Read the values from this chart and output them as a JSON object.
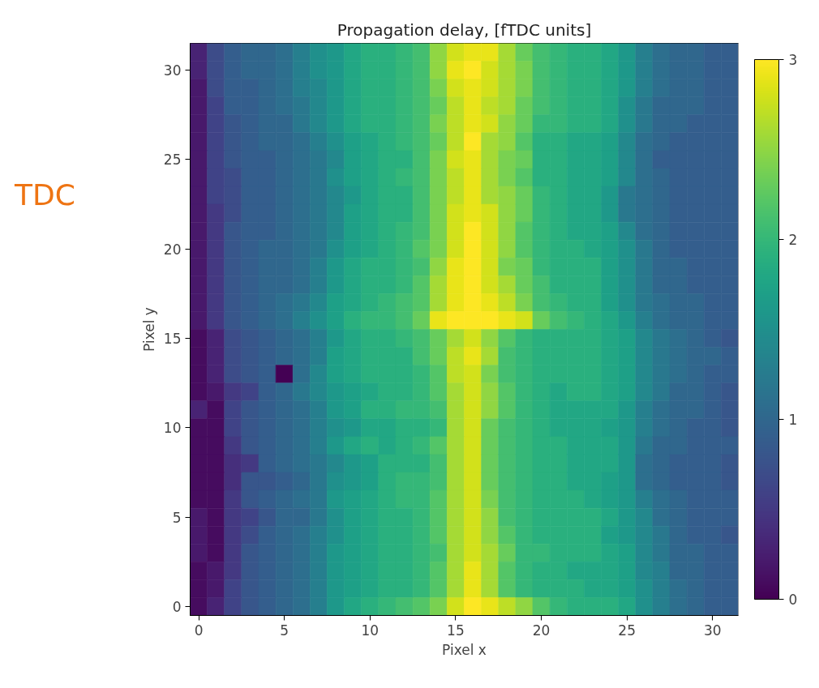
{
  "chart_data": {
    "type": "heatmap",
    "title": "Propagation delay, [fTDC units]",
    "xlabel": "Pixel x",
    "ylabel": "Pixel y",
    "categories": [
      "0",
      null,
      null,
      null,
      null,
      "5",
      null,
      null,
      null,
      null,
      "10",
      null,
      null,
      null,
      null,
      "15",
      null,
      null,
      null,
      null,
      "20",
      null,
      null,
      null,
      null,
      "25",
      null,
      null,
      null,
      null,
      "30",
      null
    ],
    "y_categories": [
      null,
      "30",
      null,
      null,
      null,
      null,
      "25",
      null,
      null,
      null,
      null,
      "20",
      null,
      null,
      null,
      null,
      "15",
      null,
      null,
      null,
      null,
      "10",
      null,
      null,
      null,
      null,
      "5",
      null,
      null,
      null,
      null,
      "0"
    ],
    "clim": [
      0,
      3
    ],
    "cticks": [
      0,
      1,
      2,
      3
    ],
    "annotations": [
      "TDC"
    ],
    "cells": [
      [
        0.3,
        0.7,
        0.9,
        1.0,
        1.0,
        1.1,
        1.3,
        1.5,
        1.6,
        1.8,
        1.9,
        1.9,
        2.0,
        2.1,
        2.5,
        2.8,
        2.9,
        2.9,
        2.6,
        2.3,
        2.1,
        2.0,
        1.9,
        1.9,
        1.8,
        1.6,
        1.3,
        1.1,
        1.0,
        1.0,
        0.9,
        0.9
      ],
      [
        0.3,
        0.7,
        0.9,
        1.0,
        1.0,
        1.1,
        1.3,
        1.5,
        1.6,
        1.8,
        1.9,
        1.9,
        2.0,
        2.1,
        2.5,
        2.9,
        3.0,
        2.8,
        2.6,
        2.4,
        2.1,
        2.0,
        1.9,
        1.9,
        1.8,
        1.6,
        1.3,
        1.1,
        1.0,
        1.0,
        0.9,
        0.9
      ],
      [
        0.2,
        0.7,
        0.9,
        0.9,
        1.0,
        1.1,
        1.3,
        1.4,
        1.6,
        1.8,
        1.9,
        1.9,
        2.0,
        2.1,
        2.4,
        2.8,
        2.9,
        2.8,
        2.6,
        2.4,
        2.1,
        2.0,
        1.9,
        1.9,
        1.8,
        1.6,
        1.3,
        1.1,
        1.0,
        1.0,
        0.9,
        0.9
      ],
      [
        0.2,
        0.6,
        0.9,
        0.9,
        1.0,
        1.1,
        1.2,
        1.4,
        1.6,
        1.8,
        1.9,
        1.9,
        2.0,
        2.1,
        2.3,
        2.7,
        2.9,
        2.7,
        2.6,
        2.3,
        2.1,
        2.0,
        1.9,
        1.9,
        1.8,
        1.5,
        1.2,
        1.0,
        1.0,
        1.0,
        0.9,
        0.9
      ],
      [
        0.2,
        0.6,
        0.8,
        0.9,
        1.0,
        1.0,
        1.2,
        1.4,
        1.6,
        1.8,
        1.9,
        1.9,
        2.0,
        2.1,
        2.4,
        2.7,
        2.9,
        2.8,
        2.5,
        2.3,
        2.0,
        2.0,
        1.9,
        1.9,
        1.8,
        1.5,
        1.2,
        1.0,
        1.0,
        0.9,
        0.9,
        0.9
      ],
      [
        0.2,
        0.6,
        0.8,
        0.9,
        1.0,
        1.0,
        1.1,
        1.3,
        1.5,
        1.7,
        1.8,
        1.9,
        2.0,
        2.1,
        2.3,
        2.7,
        3.0,
        2.6,
        2.5,
        2.2,
        1.9,
        1.9,
        1.8,
        1.8,
        1.7,
        1.4,
        1.1,
        1.0,
        0.9,
        0.9,
        0.9,
        0.9
      ],
      [
        0.2,
        0.6,
        0.8,
        0.9,
        0.9,
        1.0,
        1.1,
        1.2,
        1.4,
        1.7,
        1.8,
        1.9,
        1.9,
        2.1,
        2.4,
        2.8,
        2.9,
        2.6,
        2.4,
        2.3,
        1.9,
        1.9,
        1.8,
        1.8,
        1.7,
        1.4,
        1.1,
        0.9,
        0.9,
        0.9,
        0.9,
        0.9
      ],
      [
        0.2,
        0.6,
        0.7,
        0.9,
        0.9,
        1.0,
        1.1,
        1.2,
        1.5,
        1.7,
        1.8,
        1.9,
        2.0,
        2.1,
        2.4,
        2.7,
        2.9,
        2.6,
        2.4,
        2.2,
        1.9,
        1.9,
        1.8,
        1.8,
        1.7,
        1.4,
        1.1,
        1.0,
        0.9,
        0.9,
        0.9,
        0.9
      ],
      [
        0.2,
        0.6,
        0.7,
        0.9,
        0.9,
        1.0,
        1.1,
        1.2,
        1.4,
        1.6,
        1.8,
        1.9,
        1.9,
        2.1,
        2.4,
        2.7,
        2.9,
        2.6,
        2.5,
        2.3,
        2.0,
        1.9,
        1.8,
        1.8,
        1.6,
        1.2,
        1.1,
        1.0,
        0.9,
        0.9,
        0.9,
        0.9
      ],
      [
        0.2,
        0.5,
        0.7,
        0.9,
        0.9,
        1.0,
        1.1,
        1.2,
        1.4,
        1.7,
        1.8,
        1.9,
        1.9,
        2.1,
        2.4,
        2.8,
        2.9,
        2.8,
        2.5,
        2.3,
        2.0,
        1.9,
        1.8,
        1.8,
        1.6,
        1.2,
        1.1,
        1.0,
        0.9,
        0.9,
        0.9,
        0.9
      ],
      [
        0.2,
        0.5,
        0.8,
        0.9,
        0.9,
        1.0,
        1.1,
        1.2,
        1.4,
        1.7,
        1.8,
        1.9,
        2.0,
        2.1,
        2.4,
        2.8,
        3.0,
        2.8,
        2.5,
        2.2,
        2.0,
        1.9,
        1.8,
        1.8,
        1.7,
        1.4,
        1.1,
        1.0,
        0.9,
        0.9,
        0.9,
        0.9
      ],
      [
        0.2,
        0.5,
        0.8,
        0.9,
        1.0,
        1.0,
        1.1,
        1.2,
        1.5,
        1.7,
        1.8,
        1.9,
        2.0,
        2.2,
        2.4,
        2.8,
        3.0,
        2.8,
        2.5,
        2.2,
        2.0,
        1.9,
        1.9,
        1.8,
        1.7,
        1.5,
        1.2,
        1.0,
        0.9,
        0.9,
        0.9,
        0.9
      ],
      [
        0.2,
        0.5,
        0.8,
        0.9,
        1.0,
        1.0,
        1.1,
        1.3,
        1.6,
        1.8,
        1.9,
        1.9,
        2.0,
        2.1,
        2.5,
        2.9,
        3.0,
        2.8,
        2.4,
        2.3,
        2.0,
        1.9,
        1.9,
        1.9,
        1.7,
        1.5,
        1.2,
        1.0,
        1.0,
        0.9,
        0.9,
        0.9
      ],
      [
        0.2,
        0.5,
        0.8,
        0.9,
        1.0,
        1.0,
        1.1,
        1.3,
        1.6,
        1.8,
        1.9,
        1.9,
        2.0,
        2.2,
        2.6,
        2.9,
        3.0,
        2.8,
        2.6,
        2.3,
        2.1,
        1.9,
        1.9,
        1.9,
        1.7,
        1.5,
        1.2,
        1.0,
        1.0,
        0.9,
        0.9,
        0.9
      ],
      [
        0.2,
        0.5,
        0.8,
        0.9,
        1.0,
        1.1,
        1.2,
        1.4,
        1.7,
        1.8,
        1.9,
        2.0,
        2.1,
        2.2,
        2.6,
        2.9,
        3.0,
        2.9,
        2.7,
        2.4,
        2.1,
        2.0,
        1.9,
        1.9,
        1.7,
        1.5,
        1.2,
        1.1,
        1.0,
        1.0,
        0.9,
        0.9
      ],
      [
        0.2,
        0.5,
        0.8,
        0.9,
        1.0,
        1.1,
        1.3,
        1.5,
        1.7,
        1.9,
        2.0,
        2.0,
        2.1,
        2.3,
        2.9,
        3.0,
        3.0,
        3.0,
        2.9,
        2.8,
        2.3,
        2.1,
        2.0,
        1.9,
        1.8,
        1.6,
        1.3,
        1.1,
        1.0,
        1.0,
        0.9,
        0.9
      ],
      [
        0.1,
        0.3,
        0.7,
        0.8,
        0.9,
        1.0,
        1.1,
        1.3,
        1.6,
        1.8,
        1.9,
        1.9,
        2.0,
        2.1,
        2.3,
        2.6,
        2.8,
        2.5,
        2.2,
        2.0,
        1.9,
        1.9,
        1.9,
        1.9,
        1.8,
        1.7,
        1.4,
        1.2,
        1.1,
        1.0,
        0.9,
        0.8
      ],
      [
        0.1,
        0.3,
        0.7,
        0.8,
        0.9,
        1.0,
        1.1,
        1.3,
        1.7,
        1.8,
        1.9,
        1.9,
        1.9,
        2.1,
        2.3,
        2.7,
        2.9,
        2.6,
        2.1,
        2.0,
        1.9,
        1.9,
        1.9,
        1.9,
        1.8,
        1.7,
        1.4,
        1.2,
        1.1,
        1.0,
        1.0,
        0.9
      ],
      [
        0.1,
        0.3,
        0.7,
        0.8,
        0.9,
        0.0,
        1.1,
        1.4,
        1.7,
        1.8,
        1.9,
        1.9,
        1.9,
        2.0,
        2.2,
        2.7,
        2.8,
        2.4,
        2.1,
        2.0,
        1.9,
        1.9,
        1.9,
        1.9,
        1.8,
        1.7,
        1.4,
        1.2,
        1.1,
        1.0,
        0.9,
        0.9
      ],
      [
        0.1,
        0.2,
        0.5,
        0.6,
        0.9,
        1.0,
        1.2,
        1.4,
        1.6,
        1.7,
        1.8,
        1.9,
        1.9,
        2.0,
        2.2,
        2.6,
        2.8,
        2.5,
        2.2,
        2.0,
        1.9,
        1.8,
        1.9,
        1.9,
        1.8,
        1.7,
        1.4,
        1.2,
        1.0,
        1.0,
        0.9,
        0.8
      ],
      [
        0.3,
        0.1,
        0.6,
        0.8,
        0.9,
        1.0,
        1.1,
        1.3,
        1.6,
        1.7,
        1.9,
        1.9,
        2.0,
        2.0,
        2.1,
        2.6,
        2.8,
        2.5,
        2.2,
        2.0,
        1.9,
        1.8,
        1.8,
        1.8,
        1.8,
        1.6,
        1.3,
        1.1,
        1.0,
        1.0,
        0.9,
        0.8
      ],
      [
        0.1,
        0.1,
        0.6,
        0.8,
        0.9,
        1.0,
        1.1,
        1.3,
        1.5,
        1.6,
        1.8,
        1.8,
        1.9,
        1.9,
        2.0,
        2.6,
        2.8,
        2.3,
        2.1,
        2.0,
        1.9,
        1.8,
        1.8,
        1.8,
        1.7,
        1.6,
        1.3,
        1.1,
        1.0,
        0.9,
        0.9,
        0.8
      ],
      [
        0.1,
        0.1,
        0.5,
        0.8,
        0.9,
        1.0,
        1.1,
        1.3,
        1.6,
        1.8,
        1.9,
        1.8,
        1.9,
        2.0,
        2.2,
        2.6,
        2.8,
        2.3,
        2.1,
        2.0,
        1.9,
        1.9,
        1.8,
        1.8,
        1.8,
        1.6,
        1.2,
        1.0,
        1.0,
        0.9,
        0.9,
        0.9
      ],
      [
        0.1,
        0.1,
        0.4,
        0.5,
        0.9,
        1.0,
        1.1,
        1.2,
        1.4,
        1.6,
        1.7,
        1.9,
        1.9,
        1.9,
        2.1,
        2.6,
        2.8,
        2.3,
        2.1,
        2.0,
        1.9,
        1.9,
        1.8,
        1.8,
        1.8,
        1.6,
        1.1,
        1.0,
        0.9,
        0.9,
        0.9,
        0.8
      ],
      [
        0.1,
        0.1,
        0.4,
        0.8,
        0.8,
        0.9,
        1.0,
        1.2,
        1.5,
        1.6,
        1.7,
        1.9,
        2.0,
        2.0,
        2.1,
        2.6,
        2.8,
        2.3,
        2.1,
        2.0,
        1.9,
        1.9,
        1.8,
        1.8,
        1.7,
        1.6,
        1.1,
        1.0,
        0.9,
        0.9,
        0.9,
        0.8
      ],
      [
        0.1,
        0.1,
        0.5,
        0.8,
        0.9,
        1.0,
        1.1,
        1.2,
        1.6,
        1.7,
        1.8,
        1.9,
        2.0,
        2.0,
        2.2,
        2.6,
        2.8,
        2.4,
        2.1,
        2.0,
        1.9,
        1.9,
        1.9,
        1.8,
        1.7,
        1.6,
        1.3,
        1.1,
        1.0,
        0.9,
        0.9,
        0.9
      ],
      [
        0.2,
        0.1,
        0.5,
        0.6,
        0.8,
        1.0,
        1.0,
        1.2,
        1.5,
        1.7,
        1.8,
        1.9,
        1.9,
        2.0,
        2.2,
        2.6,
        2.8,
        2.5,
        2.1,
        2.0,
        1.9,
        1.9,
        1.9,
        1.9,
        1.8,
        1.6,
        1.4,
        1.1,
        1.0,
        0.9,
        0.9,
        0.9
      ],
      [
        0.2,
        0.1,
        0.5,
        0.7,
        0.9,
        1.0,
        1.1,
        1.3,
        1.5,
        1.7,
        1.8,
        1.9,
        1.9,
        2.0,
        2.2,
        2.6,
        2.8,
        2.5,
        2.2,
        2.0,
        1.9,
        1.9,
        1.9,
        1.9,
        1.7,
        1.6,
        1.4,
        1.2,
        1.0,
        0.9,
        0.9,
        0.8
      ],
      [
        0.2,
        0.1,
        0.5,
        0.8,
        0.9,
        1.0,
        1.1,
        1.3,
        1.6,
        1.7,
        1.8,
        1.9,
        1.9,
        2.0,
        2.1,
        2.6,
        2.8,
        2.6,
        2.3,
        2.0,
        2.0,
        1.9,
        1.9,
        1.9,
        1.8,
        1.7,
        1.4,
        1.2,
        1.0,
        1.0,
        0.9,
        0.9
      ],
      [
        0.1,
        0.2,
        0.5,
        0.8,
        0.9,
        1.0,
        1.1,
        1.3,
        1.6,
        1.7,
        1.8,
        1.9,
        1.9,
        2.0,
        2.2,
        2.6,
        2.9,
        2.6,
        2.2,
        2.0,
        1.9,
        1.9,
        1.8,
        1.8,
        1.8,
        1.7,
        1.4,
        1.3,
        1.0,
        1.0,
        0.9,
        0.9
      ],
      [
        0.1,
        0.2,
        0.6,
        0.8,
        0.9,
        1.0,
        1.1,
        1.3,
        1.6,
        1.7,
        1.8,
        1.9,
        1.9,
        2.0,
        2.2,
        2.6,
        2.9,
        2.6,
        2.2,
        2.0,
        1.9,
        1.9,
        1.9,
        1.8,
        1.8,
        1.7,
        1.5,
        1.3,
        1.1,
        1.0,
        0.9,
        0.9
      ],
      [
        0.1,
        0.3,
        0.6,
        0.8,
        0.9,
        1.0,
        1.1,
        1.3,
        1.6,
        1.8,
        1.9,
        2.0,
        2.1,
        2.2,
        2.4,
        2.8,
        3.0,
        2.9,
        2.7,
        2.5,
        2.2,
        2.0,
        1.9,
        1.9,
        1.9,
        1.8,
        1.5,
        1.3,
        1.1,
        1.0,
        0.9,
        0.9
      ]
    ]
  }
}
